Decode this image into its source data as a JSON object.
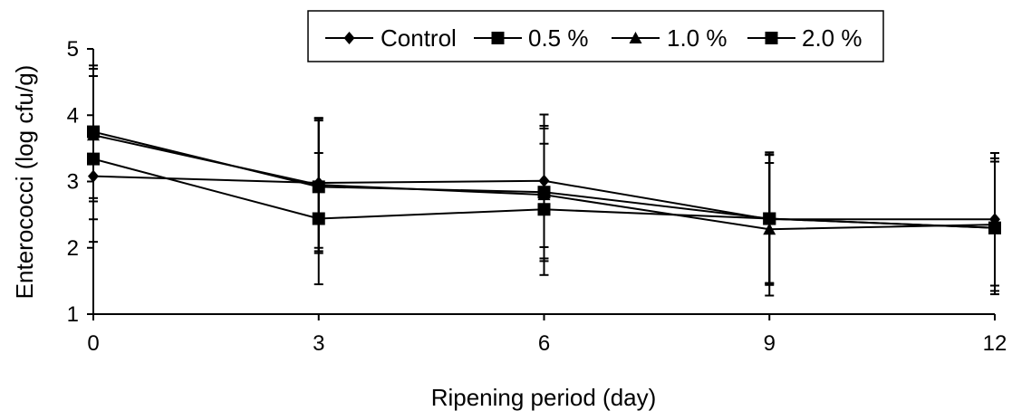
{
  "chart_data": {
    "type": "line",
    "title": "",
    "xlabel": "Ripening period (day)",
    "ylabel": "Enterococci (log cfu/g)",
    "x": [
      0,
      3,
      6,
      9,
      12
    ],
    "x_tick_labels": [
      "0",
      "3",
      "6",
      "9",
      "12"
    ],
    "xlim": [
      0,
      12
    ],
    "y_tick_labels": [
      "1",
      "2",
      "3",
      "4",
      "5"
    ],
    "ylim": [
      1,
      5
    ],
    "grid": false,
    "legend_position": "top-right, boxed",
    "series": [
      {
        "name": "Control",
        "marker": "diamond",
        "color": "#000000",
        "values": [
          3.08,
          2.98,
          3.01,
          2.43,
          2.43
        ],
        "error": [
          0.65,
          0.98,
          1.0,
          0.97,
          1.0
        ]
      },
      {
        "name": "0.5 %",
        "marker": "square",
        "color": "#000000",
        "values": [
          3.34,
          2.44,
          2.58,
          2.44,
          2.3
        ],
        "error": [
          1.25,
          0.99,
          0.99,
          0.97,
          1.0
        ]
      },
      {
        "name": "1.0 %",
        "marker": "triangle",
        "color": "#000000",
        "values": [
          3.7,
          2.95,
          2.8,
          2.28,
          2.35
        ],
        "error": [
          1.0,
          1.0,
          1.0,
          1.0,
          1.0
        ]
      },
      {
        "name": "2.0 %",
        "marker": "square",
        "color": "#000000",
        "values": [
          3.75,
          2.92,
          2.84,
          2.44,
          2.3
        ],
        "error": [
          1.0,
          1.0,
          1.0,
          1.0,
          1.0
        ]
      }
    ]
  }
}
